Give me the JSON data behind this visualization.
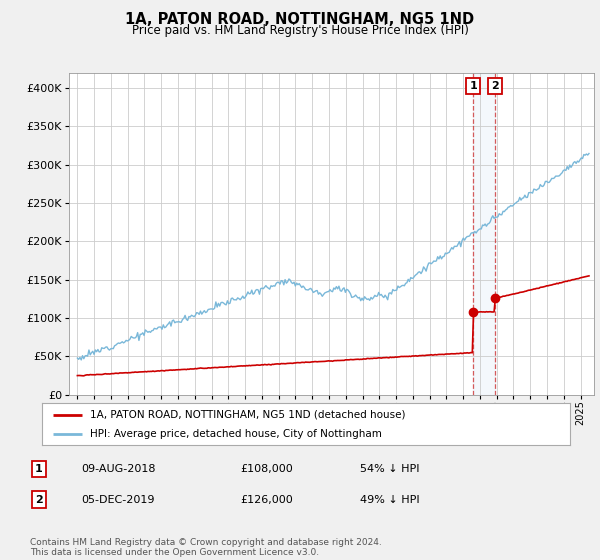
{
  "title": "1A, PATON ROAD, NOTTINGHAM, NG5 1ND",
  "subtitle": "Price paid vs. HM Land Registry's House Price Index (HPI)",
  "ylim": [
    0,
    420000
  ],
  "yticks": [
    0,
    50000,
    100000,
    150000,
    200000,
    250000,
    300000,
    350000,
    400000
  ],
  "ytick_labels": [
    "£0",
    "£50K",
    "£100K",
    "£150K",
    "£200K",
    "£250K",
    "£300K",
    "£350K",
    "£400K"
  ],
  "hpi_color": "#7ab8d9",
  "price_color": "#cc0000",
  "background_color": "#f0f0f0",
  "plot_bg_color": "#ffffff",
  "legend_label_price": "1A, PATON ROAD, NOTTINGHAM, NG5 1ND (detached house)",
  "legend_label_hpi": "HPI: Average price, detached house, City of Nottingham",
  "annotation1_label": "1",
  "annotation1_date": "09-AUG-2018",
  "annotation1_price": "£108,000",
  "annotation1_pct": "54% ↓ HPI",
  "annotation2_label": "2",
  "annotation2_date": "05-DEC-2019",
  "annotation2_price": "£126,000",
  "annotation2_pct": "49% ↓ HPI",
  "footnote": "Contains HM Land Registry data © Crown copyright and database right 2024.\nThis data is licensed under the Open Government Licence v3.0.",
  "sale1_year": 2018.6,
  "sale1_price": 108000,
  "sale2_year": 2019.92,
  "sale2_price": 126000,
  "xlim_left": 1994.5,
  "xlim_right": 2025.8
}
